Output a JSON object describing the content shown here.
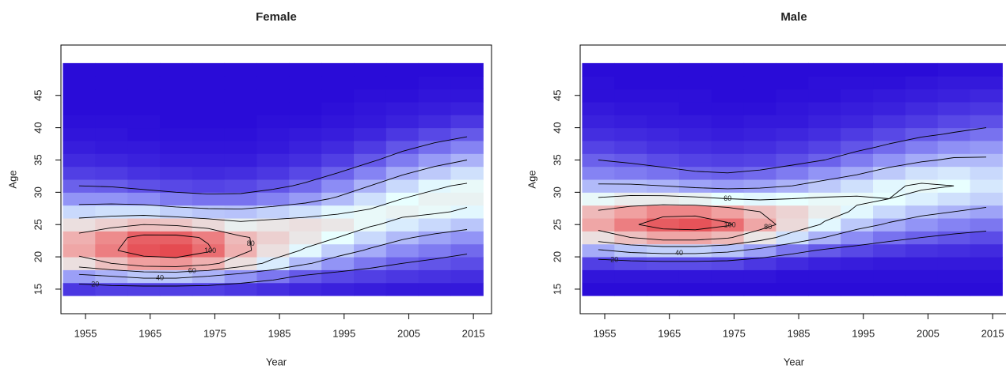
{
  "chart_data": [
    {
      "type": "heatmap",
      "title": "Female",
      "xlabel": "Year",
      "ylabel": "Age",
      "x": [
        1954,
        1959,
        1964,
        1969,
        1974,
        1979,
        1984,
        1989,
        1994,
        1999,
        2004,
        2009,
        2014
      ],
      "y": [
        15,
        17,
        19,
        21,
        23,
        25,
        27,
        29,
        31,
        33,
        35,
        37,
        39,
        41,
        43,
        45,
        47,
        49
      ],
      "values": [
        [
          10,
          12,
          12,
          12,
          12,
          10,
          8,
          6,
          5,
          4,
          3,
          3,
          3
        ],
        [
          35,
          40,
          45,
          45,
          40,
          32,
          25,
          18,
          14,
          12,
          10,
          9,
          8
        ],
        [
          70,
          80,
          90,
          92,
          85,
          70,
          55,
          42,
          32,
          25,
          20,
          17,
          15
        ],
        [
          88,
          98,
          108,
          110,
          102,
          85,
          70,
          58,
          47,
          38,
          30,
          26,
          22
        ],
        [
          85,
          95,
          105,
          105,
          98,
          82,
          75,
          68,
          60,
          50,
          42,
          36,
          32
        ],
        [
          70,
          75,
          80,
          78,
          72,
          65,
          68,
          70,
          68,
          62,
          55,
          50,
          45
        ],
        [
          50,
          52,
          52,
          48,
          45,
          44,
          48,
          52,
          58,
          62,
          64,
          62,
          58
        ],
        [
          32,
          32,
          30,
          26,
          24,
          24,
          28,
          34,
          42,
          52,
          60,
          64,
          64
        ],
        [
          20,
          19,
          16,
          14,
          13,
          14,
          17,
          22,
          30,
          40,
          50,
          58,
          62
        ],
        [
          12,
          11,
          9,
          8,
          7,
          8,
          10,
          14,
          20,
          28,
          38,
          46,
          52
        ],
        [
          7,
          6,
          5,
          4,
          4,
          4,
          6,
          8,
          12,
          18,
          26,
          34,
          40
        ],
        [
          4,
          3,
          3,
          2,
          2,
          2,
          3,
          5,
          7,
          11,
          17,
          23,
          28
        ],
        [
          2,
          2,
          1,
          1,
          1,
          1,
          2,
          3,
          4,
          6,
          10,
          14,
          18
        ],
        [
          1,
          1,
          1,
          0,
          0,
          0,
          1,
          1,
          2,
          3,
          5,
          7,
          10
        ],
        [
          0,
          0,
          0,
          0,
          0,
          0,
          0,
          0,
          1,
          2,
          3,
          4,
          5
        ],
        [
          0,
          0,
          0,
          0,
          0,
          0,
          0,
          0,
          0,
          1,
          1,
          2,
          2
        ],
        [
          0,
          0,
          0,
          0,
          0,
          0,
          0,
          0,
          0,
          0,
          0,
          1,
          1
        ],
        [
          0,
          0,
          0,
          0,
          0,
          0,
          0,
          0,
          0,
          0,
          0,
          0,
          0
        ]
      ],
      "xlim": [
        1951.2,
        2017.8
      ],
      "ylim": [
        11.2,
        52.8
      ],
      "xticks": [
        1955,
        1965,
        1975,
        1985,
        1995,
        2005,
        2015
      ],
      "yticks": [
        15,
        20,
        25,
        30,
        35,
        40,
        45
      ],
      "colorscale": [
        [
          0,
          "#2a0cd8"
        ],
        [
          30,
          "#8c8cf5"
        ],
        [
          60,
          "#e8ffff"
        ],
        [
          90,
          "#f0a0a0"
        ],
        [
          120,
          "#e0202a"
        ]
      ],
      "contour_levels": [
        20,
        40,
        60,
        80,
        100
      ]
    },
    {
      "type": "heatmap",
      "title": "Male",
      "xlabel": "Year",
      "ylabel": "Age",
      "x": [
        1954,
        1959,
        1964,
        1969,
        1974,
        1979,
        1984,
        1989,
        1994,
        1999,
        2004,
        2009,
        2014
      ],
      "y": [
        15,
        17,
        19,
        21,
        23,
        25,
        27,
        29,
        31,
        33,
        35,
        37,
        39,
        41,
        43,
        45,
        47,
        49
      ],
      "values": [
        [
          0,
          0,
          0,
          0,
          0,
          0,
          0,
          0,
          0,
          0,
          0,
          0,
          0
        ],
        [
          2,
          2,
          2,
          2,
          2,
          2,
          1,
          1,
          1,
          1,
          1,
          1,
          1
        ],
        [
          12,
          14,
          15,
          15,
          14,
          10,
          7,
          5,
          4,
          3,
          3,
          3,
          3
        ],
        [
          38,
          45,
          48,
          48,
          44,
          35,
          25,
          18,
          14,
          11,
          9,
          8,
          7
        ],
        [
          70,
          80,
          88,
          88,
          82,
          68,
          52,
          40,
          30,
          24,
          20,
          17,
          15
        ],
        [
          88,
          98,
          106,
          108,
          102,
          88,
          72,
          58,
          46,
          38,
          32,
          28,
          25
        ],
        [
          82,
          90,
          96,
          96,
          90,
          80,
          74,
          66,
          58,
          50,
          44,
          40,
          36
        ],
        [
          62,
          66,
          66,
          64,
          60,
          58,
          60,
          62,
          62,
          60,
          56,
          52,
          48
        ],
        [
          42,
          42,
          40,
          36,
          34,
          36,
          40,
          46,
          52,
          58,
          62,
          60,
          54
        ],
        [
          28,
          26,
          24,
          21,
          20,
          22,
          26,
          32,
          38,
          46,
          52,
          54,
          50
        ],
        [
          20,
          18,
          15,
          13,
          12,
          13,
          16,
          20,
          26,
          32,
          38,
          42,
          42
        ],
        [
          13,
          11,
          9,
          8,
          7,
          8,
          10,
          13,
          17,
          22,
          27,
          31,
          33
        ],
        [
          8,
          7,
          6,
          5,
          4,
          5,
          6,
          8,
          11,
          14,
          18,
          21,
          24
        ],
        [
          5,
          4,
          3,
          3,
          2,
          3,
          3,
          5,
          6,
          9,
          11,
          14,
          16
        ],
        [
          3,
          2,
          2,
          1,
          1,
          1,
          2,
          3,
          4,
          5,
          7,
          9,
          10
        ],
        [
          1,
          1,
          1,
          1,
          0,
          0,
          1,
          1,
          2,
          3,
          4,
          5,
          6
        ],
        [
          1,
          0,
          0,
          0,
          0,
          0,
          0,
          1,
          1,
          1,
          2,
          3,
          3
        ],
        [
          0,
          0,
          0,
          0,
          0,
          0,
          0,
          0,
          0,
          0,
          0,
          1,
          1
        ]
      ],
      "xlim": [
        1951.2,
        2017.8
      ],
      "ylim": [
        11.2,
        52.8
      ],
      "xticks": [
        1955,
        1965,
        1975,
        1985,
        1995,
        2005,
        2015
      ],
      "yticks": [
        15,
        20,
        25,
        30,
        35,
        40,
        45
      ],
      "colorscale": [
        [
          0,
          "#2a0cd8"
        ],
        [
          30,
          "#8c8cf5"
        ],
        [
          60,
          "#e8ffff"
        ],
        [
          90,
          "#f0a0a0"
        ],
        [
          120,
          "#e0202a"
        ]
      ],
      "contour_levels": [
        20,
        40,
        60,
        80,
        100
      ]
    }
  ]
}
